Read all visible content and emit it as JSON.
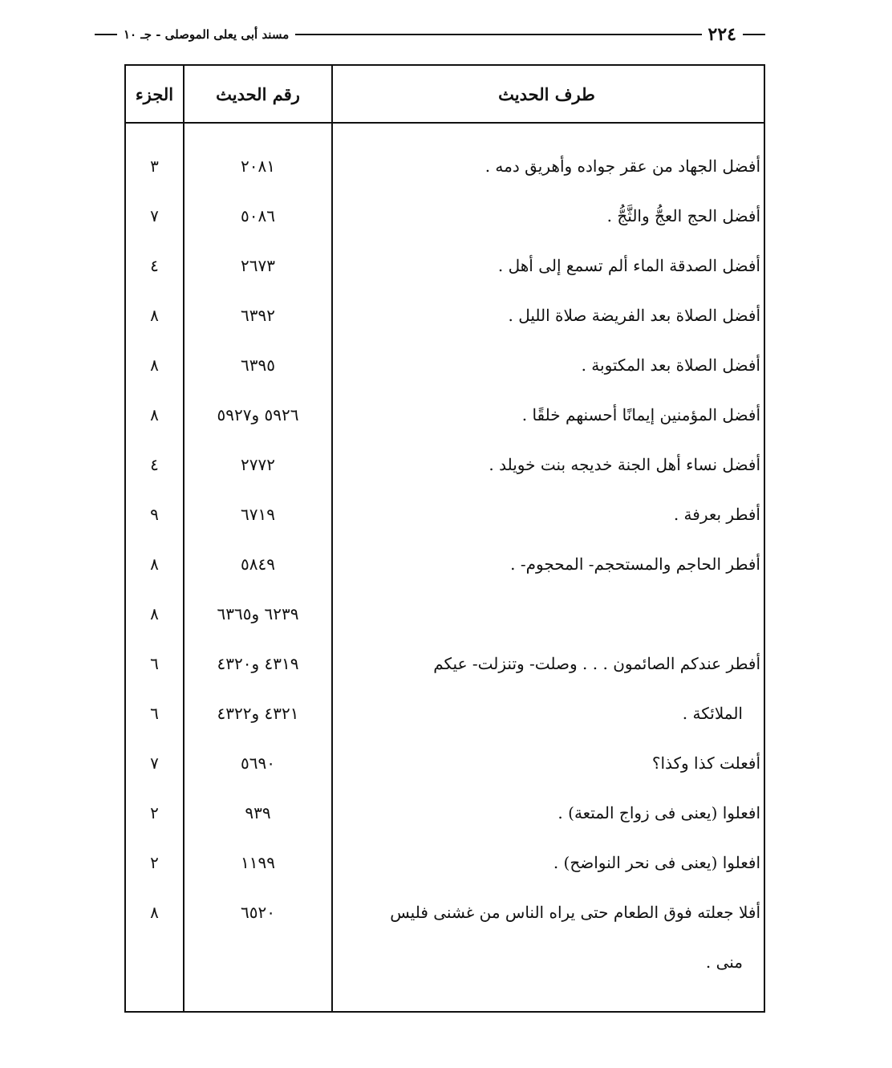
{
  "running_head": {
    "page_number": "٢٢٤",
    "title": "مسند أبى يعلى الموصلى - جـ ١٠"
  },
  "table": {
    "headers": {
      "text": "طرف الحديث",
      "number": "رقم الحديث",
      "volume": "الجزء"
    },
    "rows": [
      {
        "text": "أفضل الجهاد من عقر جواده وأهريق دمه .",
        "number": "٢٠٨١",
        "volume": "٣"
      },
      {
        "text": "أفضل الحج العجُّ والثَّجُّ .",
        "number": "٥٠٨٦",
        "volume": "٧"
      },
      {
        "text": "أفضل الصدقة الماء ألم تسمع إلى أهل .",
        "number": "٢٦٧٣",
        "volume": "٤"
      },
      {
        "text": "أفضل الصلاة بعد الفريضة صلاة الليل .",
        "number": "٦٣٩٢",
        "volume": "٨"
      },
      {
        "text": "أفضل الصلاة بعد المكتوبة .",
        "number": "٦٣٩٥",
        "volume": "٨"
      },
      {
        "text": "أفضل المؤمنين إيمانًا أحسنهم خلقًا .",
        "number": "٥٩٢٦ و٥٩٢٧",
        "volume": "٨"
      },
      {
        "text": "أفضل نساء أهل الجنة خديجه بنت خويلد .",
        "number": "٢٧٧٢",
        "volume": "٤"
      },
      {
        "text": "أفطر بعرفة .",
        "number": "٦٧١٩",
        "volume": "٩"
      },
      {
        "text": "أفطر الحاجم والمستحجم- المحجوم- .",
        "number": "٥٨٤٩",
        "volume": "٨"
      },
      {
        "text": "",
        "number": "٦٢٣٩ و٦٣٦٥",
        "volume": "٨"
      },
      {
        "text": "أفطر عندكم الصائمون . . . وصلت- وتنزلت- عيكم",
        "number": "٤٣١٩ و٤٣٢٠",
        "volume": "٦"
      },
      {
        "text": "الملائكة .",
        "number": "٤٣٢١ و٤٣٢٢",
        "volume": "٦"
      },
      {
        "text": "أفعلت كذا وكذا؟",
        "number": "٥٦٩٠",
        "volume": "٧"
      },
      {
        "text": "افعلوا (يعنى فى زواج المتعة) .",
        "number": "٩٣٩",
        "volume": "٢"
      },
      {
        "text": "افعلوا (يعنى فى نحر النواضح) .",
        "number": "١١٩٩",
        "volume": "٢"
      },
      {
        "text": "أفلا جعلته فوق الطعام حتى يراه الناس من غشنى فليس",
        "number": "٦٥٢٠",
        "volume": "٨"
      },
      {
        "text": "منى .",
        "number": "",
        "volume": ""
      }
    ]
  }
}
